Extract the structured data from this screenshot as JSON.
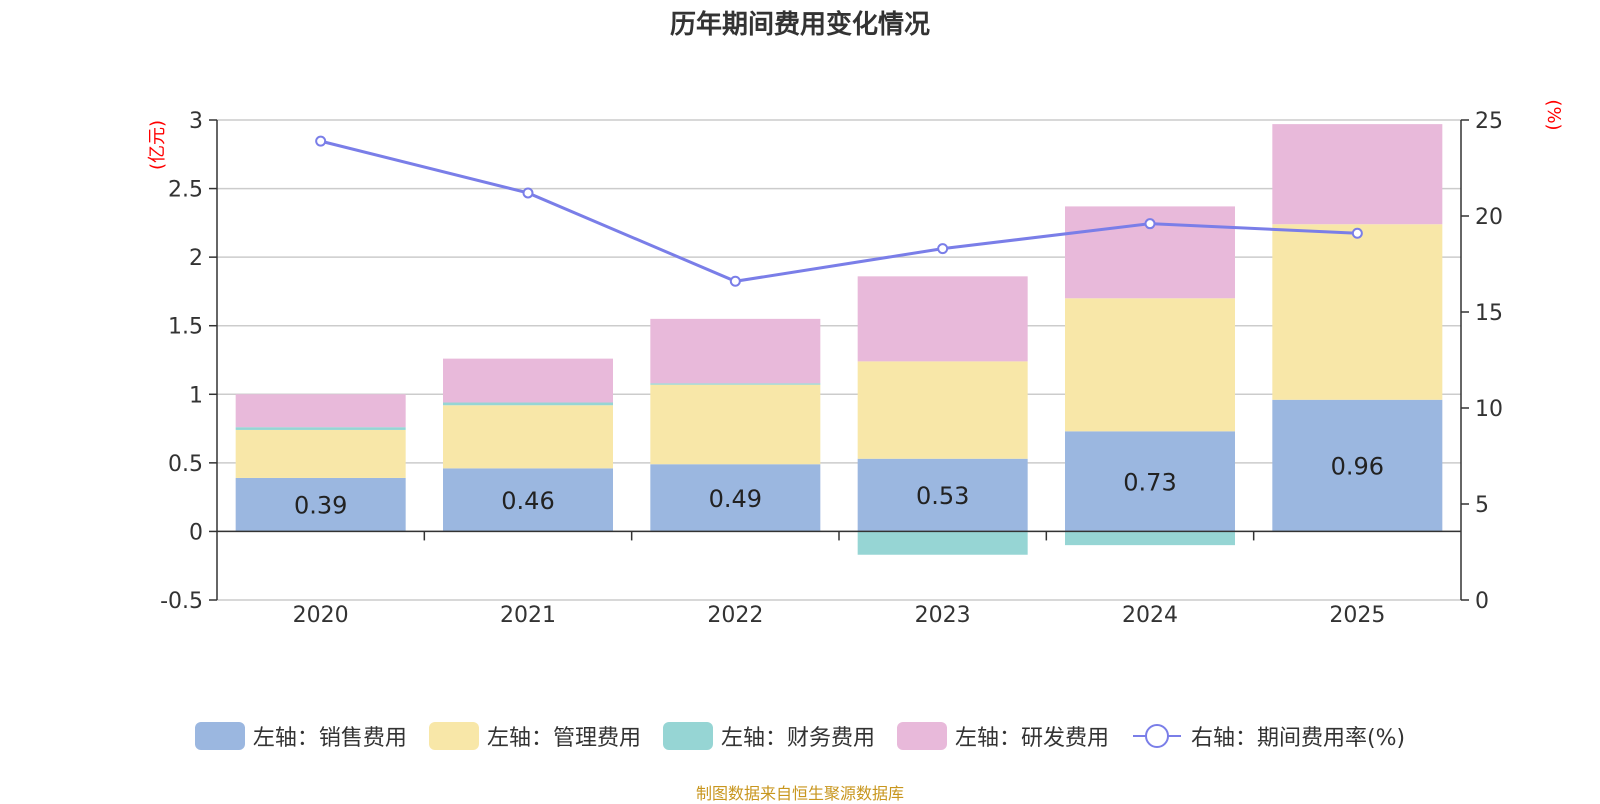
{
  "title": "历年期间费用变化情况",
  "source": "制图数据来自恒生聚源数据库",
  "chart_data": {
    "type": "bar",
    "stacked": true,
    "categories": [
      "2020",
      "2021",
      "2022",
      "2023",
      "2024",
      "2025"
    ],
    "left_axis": {
      "unit": "(亿元)",
      "ylim": [
        -0.5,
        3
      ],
      "ticks": [
        "-0.5",
        "0",
        "0.5",
        "1",
        "1.5",
        "2",
        "2.5",
        "3"
      ]
    },
    "right_axis": {
      "unit": "(%)",
      "ylim": [
        0,
        25
      ],
      "ticks": [
        "0",
        "5",
        "10",
        "15",
        "20",
        "25"
      ]
    },
    "series": [
      {
        "name": "左轴：销售费用",
        "type": "bar",
        "axis": "left",
        "color": "#9bb7e0",
        "values": [
          0.39,
          0.46,
          0.49,
          0.53,
          0.73,
          0.96
        ],
        "labels": [
          "0.39",
          "0.46",
          "0.49",
          "0.53",
          "0.73",
          "0.96"
        ]
      },
      {
        "name": "左轴：管理费用",
        "type": "bar",
        "axis": "left",
        "color": "#f8e7a8",
        "values": [
          0.35,
          0.46,
          0.58,
          0.71,
          0.97,
          1.28
        ]
      },
      {
        "name": "左轴：财务费用",
        "type": "bar",
        "axis": "left",
        "color": "#96d5d4",
        "values": [
          0.02,
          0.02,
          0.01,
          -0.17,
          -0.1,
          0.0
        ]
      },
      {
        "name": "左轴：研发费用",
        "type": "bar",
        "axis": "left",
        "color": "#e8b9da",
        "values": [
          0.24,
          0.32,
          0.47,
          0.62,
          0.67,
          0.73
        ]
      },
      {
        "name": "右轴：期间费用率(%)",
        "type": "line",
        "axis": "right",
        "color": "#7a7ee8",
        "values": [
          23.9,
          21.2,
          16.6,
          18.3,
          19.6,
          19.1
        ]
      }
    ]
  }
}
